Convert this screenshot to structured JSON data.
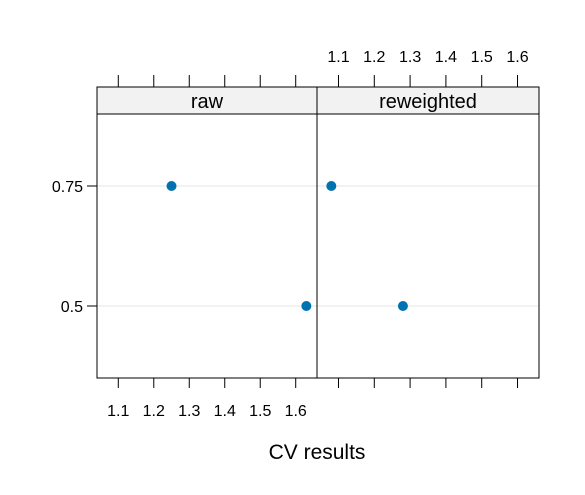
{
  "chart_data": {
    "type": "scatter",
    "title": "",
    "xlabel": "CV results",
    "ylabel": "",
    "xlim": [
      1.04,
      1.66
    ],
    "x_ticks": [
      "1.1",
      "1.2",
      "1.3",
      "1.4",
      "1.5",
      "1.6"
    ],
    "x_tick_values": [
      1.1,
      1.2,
      1.3,
      1.4,
      1.5,
      1.6
    ],
    "y_categories": [
      "0.5",
      "0.75"
    ],
    "grid": "horizontal",
    "point_color": "#0072B2",
    "panels": [
      {
        "name": "raw",
        "points": [
          {
            "x": 1.25,
            "y": "0.75"
          },
          {
            "x": 1.63,
            "y": "0.5"
          }
        ]
      },
      {
        "name": "reweighted",
        "points": [
          {
            "x": 1.08,
            "y": "0.75"
          },
          {
            "x": 1.28,
            "y": "0.5"
          }
        ]
      }
    ]
  }
}
